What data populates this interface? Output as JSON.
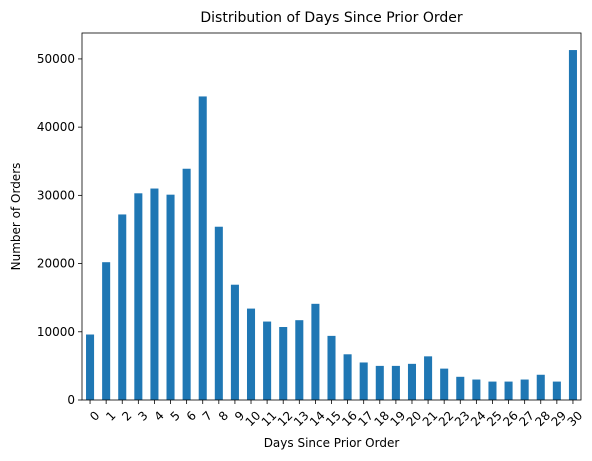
{
  "chart_data": {
    "type": "bar",
    "title": "Distribution of Days Since Prior Order",
    "xlabel": "Days Since Prior Order",
    "ylabel": "Number of Orders",
    "categories": [
      "0",
      "1",
      "2",
      "3",
      "4",
      "5",
      "6",
      "7",
      "8",
      "9",
      "10",
      "11",
      "12",
      "13",
      "14",
      "15",
      "16",
      "17",
      "18",
      "19",
      "20",
      "21",
      "22",
      "23",
      "24",
      "25",
      "26",
      "27",
      "28",
      "29",
      "30"
    ],
    "values": [
      9600,
      20200,
      27200,
      30300,
      31000,
      30100,
      33900,
      44500,
      25400,
      16900,
      13400,
      11500,
      10700,
      11700,
      14100,
      9400,
      6700,
      5500,
      5000,
      5000,
      5300,
      6400,
      4600,
      3400,
      3000,
      2700,
      2700,
      3000,
      3700,
      2700,
      51300
    ],
    "ylim": [
      0,
      53800
    ],
    "yticks": [
      0,
      10000,
      20000,
      30000,
      40000,
      50000
    ],
    "bar_color": "#1f77b4",
    "grid": false
  }
}
